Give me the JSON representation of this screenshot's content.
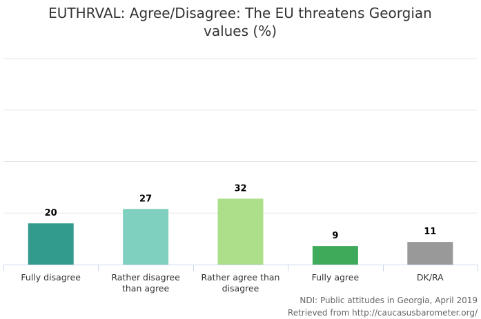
{
  "chart_data": {
    "type": "bar",
    "title": "EUTHRVAL: Agree/Disagree: The EU threatens Georgian values (%)",
    "categories": [
      "Fully disagree",
      "Rather disagree than agree",
      "Rather agree than disagree",
      "Fully agree",
      "DK/RA"
    ],
    "values": [
      20,
      27,
      32,
      9,
      11
    ],
    "colors": [
      "#339a8e",
      "#80d0bf",
      "#addf8a",
      "#40aa5b",
      "#999999"
    ],
    "ylim": [
      0,
      100
    ],
    "yticks": [
      0,
      25,
      50,
      75,
      100
    ],
    "grid": true,
    "source": [
      "NDI: Public attitudes in Georgia, April 2019",
      "Retrieved from http://caucasusbarometer.org/"
    ]
  }
}
